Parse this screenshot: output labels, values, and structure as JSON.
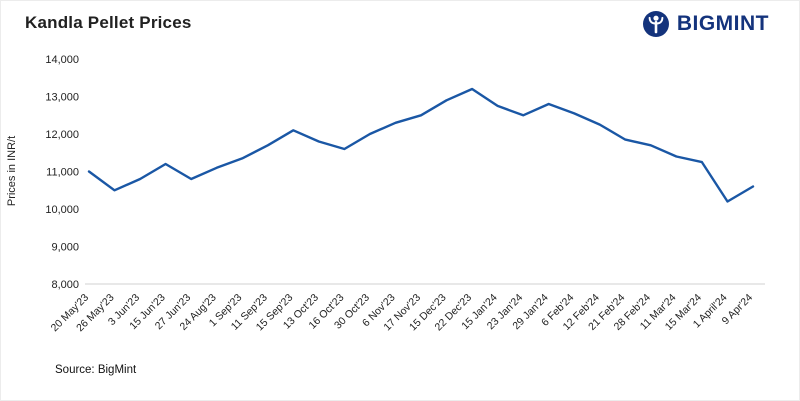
{
  "header": {
    "title": "Kandla Pellet Prices",
    "brand": {
      "name": "BIGMINT",
      "icon": "bigmint-person-in-circle-icon",
      "color": "#14337c"
    }
  },
  "footer": {
    "source": "Source: BigMint"
  },
  "colors": {
    "line": "#1a57a5",
    "brand_navy": "#14337c",
    "axis_line": "#d0d0d0",
    "text": "#222222"
  },
  "chart_data": {
    "type": "line",
    "title": "Kandla Pellet Prices",
    "xlabel": "",
    "ylabel": "Prices in INR/t",
    "ylim": [
      8000,
      14000
    ],
    "ytick_step": 1000,
    "grid": false,
    "legend_position": "none",
    "line_color": "#1a57a5",
    "categories": [
      "20 May'23",
      "26 May'23",
      "3 Jun'23",
      "15 Jun'23",
      "27 Jun'23",
      "24 Aug'23",
      "1 Sep'23",
      "11 Sep'23",
      "15 Sep'23",
      "13 Oct'23",
      "16 Oct'23",
      "30 Oct'23",
      "6 Nov'23",
      "17 Nov'23",
      "15 Dec'23",
      "22 Dec'23",
      "15 Jan'24",
      "23 Jan'24",
      "29 Jan'24",
      "6 Feb'24",
      "12 Feb'24",
      "21 Feb'24",
      "28 Feb'24",
      "11 Mar'24",
      "15 Mar'24",
      "1 April'24",
      "9 Apr'24"
    ],
    "values": [
      11000,
      10500,
      10800,
      11200,
      10800,
      11100,
      11350,
      11700,
      12100,
      11800,
      11600,
      12000,
      12300,
      12500,
      12900,
      13200,
      12750,
      12500,
      12800,
      12550,
      12250,
      11850,
      11700,
      11400,
      11250,
      10200,
      10600
    ]
  }
}
